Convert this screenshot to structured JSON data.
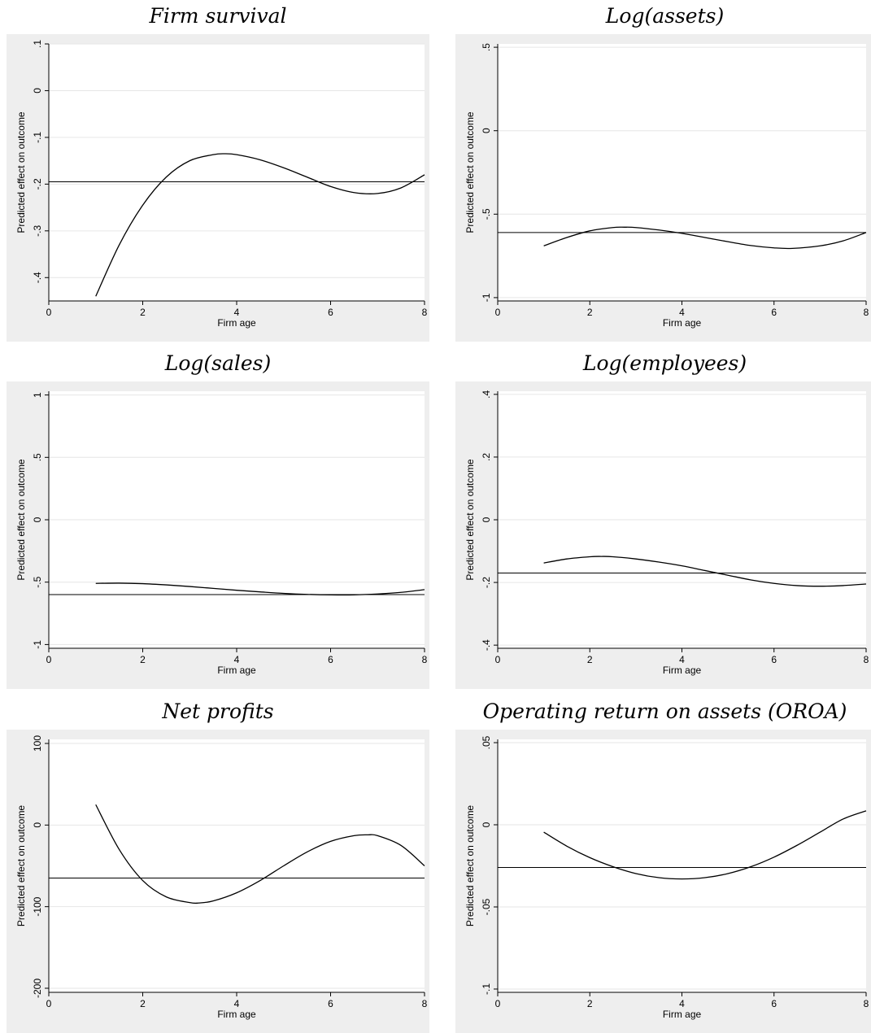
{
  "chart_data": [
    {
      "type": "line",
      "title": "Firm survival",
      "xlabel": "Firm age",
      "ylabel": "Predicted effect on outcome",
      "xlim": [
        0,
        8
      ],
      "ylim": [
        -0.45,
        0.1
      ],
      "xticks": [
        0,
        2,
        4,
        6,
        8
      ],
      "xtick_labels": [
        "0",
        "2",
        "4",
        "6",
        "8"
      ],
      "yticks": [
        -0.4,
        -0.3,
        -0.2,
        -0.1,
        0,
        0.1
      ],
      "ytick_labels": [
        "-.4",
        "-.3",
        "-.2",
        "-.1",
        "0",
        ".1"
      ],
      "grid": true,
      "curve": {
        "x": [
          1,
          1.5,
          2,
          2.5,
          3,
          3.5,
          3.75,
          4,
          4.5,
          5,
          5.5,
          6,
          6.5,
          7,
          7.5,
          8
        ],
        "y": [
          -0.44,
          -0.33,
          -0.245,
          -0.185,
          -0.15,
          -0.137,
          -0.135,
          -0.137,
          -0.148,
          -0.165,
          -0.185,
          -0.205,
          -0.218,
          -0.22,
          -0.208,
          -0.18
        ]
      },
      "reference_line": -0.195
    },
    {
      "type": "line",
      "title": "Log(assets)",
      "xlabel": "Firm age",
      "ylabel": "Predicted effect on outcome",
      "xlim": [
        0,
        8
      ],
      "ylim": [
        -1.02,
        0.52
      ],
      "xticks": [
        0,
        2,
        4,
        6,
        8
      ],
      "xtick_labels": [
        "0",
        "2",
        "4",
        "6",
        "8"
      ],
      "yticks": [
        -1,
        -0.5,
        0,
        0.5
      ],
      "ytick_labels": [
        "-1",
        "-.5",
        "0",
        ".5"
      ],
      "grid": true,
      "curve": {
        "x": [
          1,
          1.5,
          2,
          2.5,
          2.75,
          3,
          3.5,
          4,
          4.5,
          5,
          5.5,
          6,
          6.4,
          7,
          7.5,
          8
        ],
        "y": [
          -0.69,
          -0.64,
          -0.6,
          -0.58,
          -0.578,
          -0.58,
          -0.595,
          -0.615,
          -0.64,
          -0.665,
          -0.688,
          -0.702,
          -0.705,
          -0.69,
          -0.66,
          -0.61
        ]
      },
      "reference_line": -0.61
    },
    {
      "type": "line",
      "title": "Log(sales)",
      "xlabel": "Firm age",
      "ylabel": "Predicted effect on outcome",
      "xlim": [
        0,
        8
      ],
      "ylim": [
        -1.03,
        1.03
      ],
      "xticks": [
        0,
        2,
        4,
        6,
        8
      ],
      "xtick_labels": [
        "0",
        "2",
        "4",
        "6",
        "8"
      ],
      "yticks": [
        -1,
        -0.5,
        0,
        0.5,
        1
      ],
      "ytick_labels": [
        "-1",
        "-.5",
        "0",
        ".5",
        "1"
      ],
      "grid": true,
      "curve": {
        "x": [
          1,
          1.5,
          2,
          2.5,
          3,
          3.5,
          4,
          4.5,
          5,
          5.5,
          6,
          6.5,
          7,
          7.5,
          8
        ],
        "y": [
          -0.51,
          -0.508,
          -0.512,
          -0.522,
          -0.535,
          -0.55,
          -0.565,
          -0.578,
          -0.59,
          -0.598,
          -0.602,
          -0.602,
          -0.595,
          -0.582,
          -0.56
        ]
      },
      "reference_line": -0.6
    },
    {
      "type": "line",
      "title": "Log(employees)",
      "xlabel": "Firm age",
      "ylabel": "Predicted effect on outcome",
      "xlim": [
        0,
        8
      ],
      "ylim": [
        -0.41,
        0.41
      ],
      "xticks": [
        0,
        2,
        4,
        6,
        8
      ],
      "xtick_labels": [
        "0",
        "2",
        "4",
        "6",
        "8"
      ],
      "yticks": [
        -0.4,
        -0.2,
        0,
        0.2,
        0.4
      ],
      "ytick_labels": [
        "-.4",
        "-.2",
        "0",
        ".2",
        ".4"
      ],
      "grid": true,
      "curve": {
        "x": [
          1,
          1.5,
          2,
          2.25,
          2.5,
          3,
          3.5,
          4,
          4.5,
          5,
          5.5,
          6,
          6.5,
          7,
          7.5,
          8
        ],
        "y": [
          -0.138,
          -0.125,
          -0.118,
          -0.117,
          -0.118,
          -0.125,
          -0.135,
          -0.147,
          -0.162,
          -0.177,
          -0.192,
          -0.203,
          -0.21,
          -0.212,
          -0.21,
          -0.205
        ]
      },
      "reference_line": -0.17
    },
    {
      "type": "line",
      "title": "Net profits",
      "xlabel": "Firm age",
      "ylabel": "Predicted effect on outcome",
      "xlim": [
        0,
        8
      ],
      "ylim": [
        -205,
        105
      ],
      "xticks": [
        0,
        2,
        4,
        6,
        8
      ],
      "xtick_labels": [
        "0",
        "2",
        "4",
        "6",
        "8"
      ],
      "yticks": [
        -200,
        -100,
        0,
        100
      ],
      "ytick_labels": [
        "-200",
        "-100",
        "0",
        "100"
      ],
      "grid": true,
      "curve": {
        "x": [
          1,
          1.5,
          2,
          2.5,
          3,
          3.2,
          3.5,
          4,
          4.5,
          5,
          5.5,
          6,
          6.5,
          6.8,
          7,
          7.5,
          8
        ],
        "y": [
          25,
          -30,
          -68,
          -88,
          -95,
          -95.5,
          -93,
          -83,
          -68,
          -50,
          -33,
          -20,
          -13,
          -12,
          -13,
          -25,
          -50
        ]
      },
      "reference_line": -65
    },
    {
      "type": "line",
      "title": "Operating return on assets (OROA)",
      "xlabel": "Firm age",
      "ylabel": "Predicted effect on outcome",
      "xlim": [
        0,
        8
      ],
      "ylim": [
        -0.102,
        0.052
      ],
      "xticks": [
        0,
        2,
        4,
        6,
        8
      ],
      "xtick_labels": [
        "0",
        "2",
        "4",
        "6",
        "8"
      ],
      "yticks": [
        -0.1,
        -0.05,
        0,
        0.05
      ],
      "ytick_labels": [
        "-.1",
        "-.05",
        "0",
        ".05"
      ],
      "grid": true,
      "curve": {
        "x": [
          1,
          1.5,
          2,
          2.5,
          3,
          3.5,
          4,
          4.5,
          5,
          5.5,
          6,
          6.5,
          7,
          7.5,
          8
        ],
        "y": [
          -0.0045,
          -0.013,
          -0.02,
          -0.0255,
          -0.0297,
          -0.0322,
          -0.033,
          -0.0322,
          -0.0297,
          -0.0255,
          -0.0197,
          -0.0125,
          -0.0045,
          0.0035,
          0.0085
        ]
      },
      "reference_line": -0.026
    }
  ]
}
